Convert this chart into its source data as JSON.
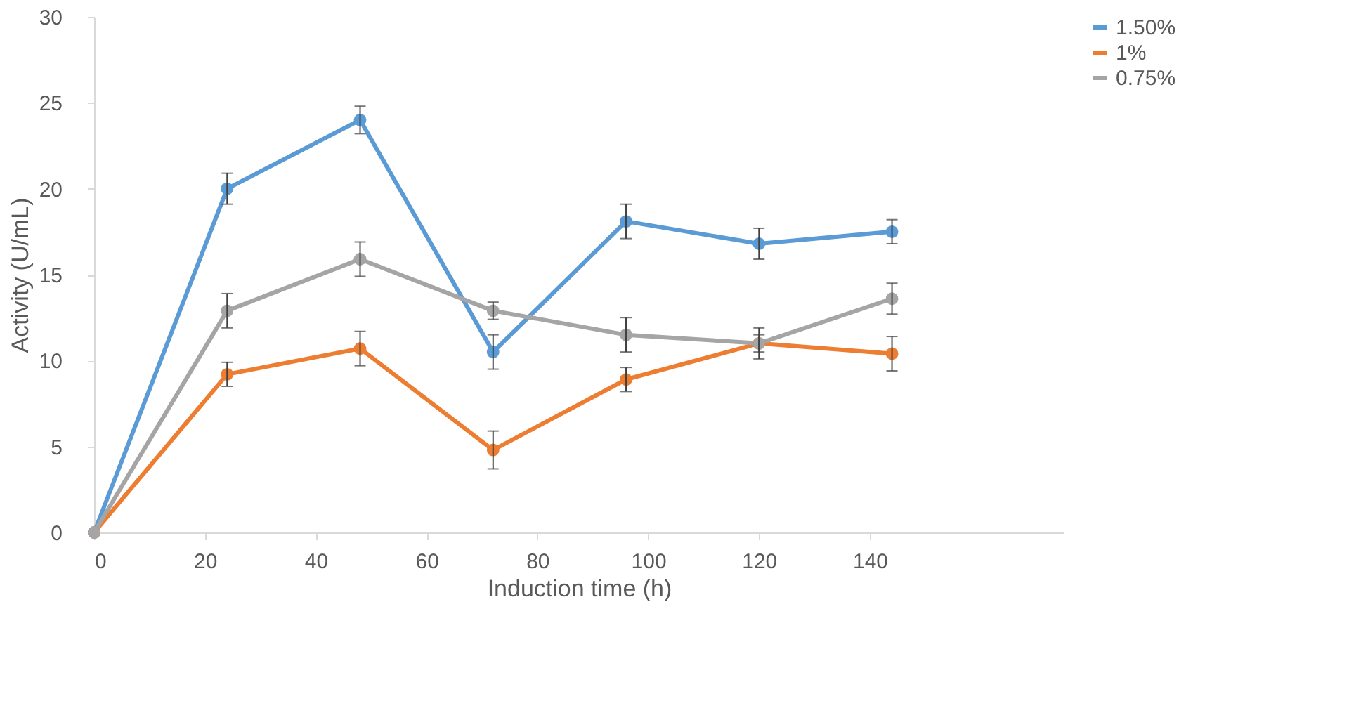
{
  "chart_data": {
    "type": "line",
    "xlabel": "Induction time (h)",
    "ylabel": "Activity (U/mL)",
    "x": [
      0,
      24,
      48,
      72,
      96,
      120,
      144
    ],
    "xlim": [
      0,
      175
    ],
    "xticks": [
      0,
      20,
      40,
      60,
      80,
      100,
      120,
      140
    ],
    "ylim": [
      0,
      30
    ],
    "yticks": [
      0,
      5,
      10,
      15,
      20,
      25,
      30
    ],
    "grid": false,
    "legend": "right",
    "marker": "circle",
    "line_style": "solid",
    "series": [
      {
        "name": "1.50%",
        "color": "#5b9bd5",
        "values": [
          0,
          20.0,
          24.0,
          10.5,
          18.1,
          16.8,
          17.5
        ],
        "errors": [
          null,
          0.9,
          0.8,
          1.0,
          1.0,
          0.9,
          0.7
        ]
      },
      {
        "name": "1%",
        "color": "#ed7d31",
        "values": [
          0,
          9.2,
          10.7,
          4.8,
          8.9,
          11.0,
          10.4
        ],
        "errors": [
          null,
          0.7,
          1.0,
          1.1,
          0.7,
          0.5,
          1.0
        ]
      },
      {
        "name": "0.75%",
        "color": "#a5a5a5",
        "values": [
          0,
          12.9,
          15.9,
          12.9,
          11.5,
          11.0,
          13.6
        ],
        "errors": [
          null,
          1.0,
          1.0,
          0.5,
          1.0,
          0.9,
          0.9
        ]
      }
    ]
  }
}
